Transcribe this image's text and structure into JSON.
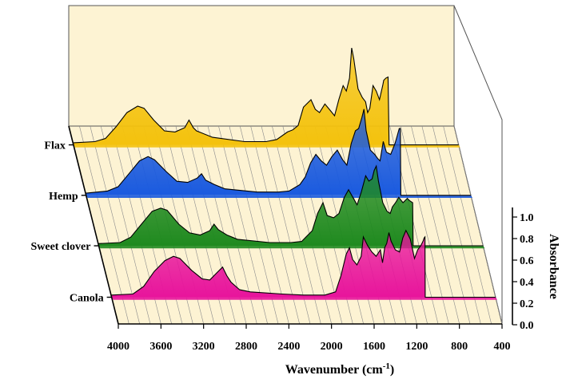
{
  "chart_data": {
    "type": "area",
    "style": "3d-waterfall",
    "xlabel": "Wavenumber (cm",
    "xlabel_sup": "-1",
    "xlabel_end": ")",
    "zlabel": "Absorbance",
    "xlim": [
      4000,
      400
    ],
    "x_ticks": [
      "4000",
      "3600",
      "3200",
      "2800",
      "2400",
      "2000",
      "1600",
      "1200",
      "800",
      "400"
    ],
    "z_ticks": [
      "0.0",
      "0.2",
      "0.4",
      "0.6",
      "0.8",
      "1.0"
    ],
    "zlim": [
      0,
      1.0
    ],
    "grid": true,
    "series": [
      {
        "name": "Flax",
        "color": "#f4c20d",
        "points": [
          [
            4000,
            0.02
          ],
          [
            3800,
            0.03
          ],
          [
            3700,
            0.06
          ],
          [
            3600,
            0.17
          ],
          [
            3500,
            0.3
          ],
          [
            3400,
            0.36
          ],
          [
            3340,
            0.34
          ],
          [
            3250,
            0.23
          ],
          [
            3150,
            0.13
          ],
          [
            3050,
            0.12
          ],
          [
            2960,
            0.16
          ],
          [
            2920,
            0.23
          ],
          [
            2880,
            0.16
          ],
          [
            2850,
            0.13
          ],
          [
            2700,
            0.07
          ],
          [
            2400,
            0.03
          ],
          [
            2200,
            0.03
          ],
          [
            2100,
            0.05
          ],
          [
            2000,
            0.12
          ],
          [
            1950,
            0.14
          ],
          [
            1900,
            0.18
          ],
          [
            1850,
            0.35
          ],
          [
            1780,
            0.42
          ],
          [
            1740,
            0.33
          ],
          [
            1700,
            0.3
          ],
          [
            1650,
            0.38
          ],
          [
            1600,
            0.32
          ],
          [
            1560,
            0.27
          ],
          [
            1520,
            0.42
          ],
          [
            1480,
            0.55
          ],
          [
            1450,
            0.5
          ],
          [
            1420,
            0.62
          ],
          [
            1400,
            0.9
          ],
          [
            1380,
            0.8
          ],
          [
            1340,
            0.52
          ],
          [
            1300,
            0.44
          ],
          [
            1270,
            0.4
          ],
          [
            1250,
            0.3
          ],
          [
            1230,
            0.34
          ],
          [
            1200,
            0.55
          ],
          [
            1170,
            0.5
          ],
          [
            1140,
            0.42
          ],
          [
            1110,
            0.55
          ],
          [
            1100,
            0.6
          ],
          [
            1080,
            0.62
          ],
          [
            1060,
            0.63
          ],
          [
            1050,
            0.0
          ],
          [
            400,
            0.0
          ]
        ]
      },
      {
        "name": "Hemp",
        "color": "#1a5adf",
        "points": [
          [
            4000,
            0.02
          ],
          [
            3800,
            0.04
          ],
          [
            3700,
            0.08
          ],
          [
            3600,
            0.2
          ],
          [
            3500,
            0.32
          ],
          [
            3420,
            0.36
          ],
          [
            3360,
            0.33
          ],
          [
            3250,
            0.22
          ],
          [
            3150,
            0.13
          ],
          [
            3050,
            0.12
          ],
          [
            2960,
            0.16
          ],
          [
            2920,
            0.2
          ],
          [
            2880,
            0.14
          ],
          [
            2800,
            0.1
          ],
          [
            2700,
            0.06
          ],
          [
            2400,
            0.03
          ],
          [
            2200,
            0.03
          ],
          [
            2100,
            0.04
          ],
          [
            2000,
            0.1
          ],
          [
            1950,
            0.17
          ],
          [
            1900,
            0.3
          ],
          [
            1850,
            0.38
          ],
          [
            1800,
            0.32
          ],
          [
            1750,
            0.28
          ],
          [
            1700,
            0.36
          ],
          [
            1650,
            0.42
          ],
          [
            1600,
            0.33
          ],
          [
            1560,
            0.28
          ],
          [
            1520,
            0.48
          ],
          [
            1480,
            0.6
          ],
          [
            1450,
            0.62
          ],
          [
            1420,
            0.72
          ],
          [
            1400,
            0.8
          ],
          [
            1380,
            0.6
          ],
          [
            1340,
            0.42
          ],
          [
            1300,
            0.38
          ],
          [
            1270,
            0.34
          ],
          [
            1250,
            0.32
          ],
          [
            1220,
            0.5
          ],
          [
            1190,
            0.4
          ],
          [
            1150,
            0.38
          ],
          [
            1110,
            0.48
          ],
          [
            1090,
            0.55
          ],
          [
            1070,
            0.62
          ],
          [
            1060,
            0.62
          ],
          [
            1055,
            0.0
          ],
          [
            400,
            0.0
          ]
        ]
      },
      {
        "name": "Sweet clover",
        "color": "#1f8a1f",
        "points": [
          [
            4000,
            0.02
          ],
          [
            3800,
            0.03
          ],
          [
            3700,
            0.08
          ],
          [
            3600,
            0.2
          ],
          [
            3500,
            0.32
          ],
          [
            3420,
            0.35
          ],
          [
            3360,
            0.33
          ],
          [
            3250,
            0.2
          ],
          [
            3150,
            0.12
          ],
          [
            3050,
            0.1
          ],
          [
            2960,
            0.14
          ],
          [
            2920,
            0.2
          ],
          [
            2880,
            0.15
          ],
          [
            2800,
            0.1
          ],
          [
            2700,
            0.06
          ],
          [
            2400,
            0.03
          ],
          [
            2200,
            0.03
          ],
          [
            2100,
            0.04
          ],
          [
            2000,
            0.14
          ],
          [
            1950,
            0.3
          ],
          [
            1900,
            0.4
          ],
          [
            1860,
            0.28
          ],
          [
            1800,
            0.26
          ],
          [
            1750,
            0.3
          ],
          [
            1700,
            0.45
          ],
          [
            1660,
            0.52
          ],
          [
            1620,
            0.45
          ],
          [
            1580,
            0.38
          ],
          [
            1540,
            0.5
          ],
          [
            1500,
            0.65
          ],
          [
            1470,
            0.6
          ],
          [
            1440,
            0.62
          ],
          [
            1420,
            0.7
          ],
          [
            1400,
            0.74
          ],
          [
            1380,
            0.6
          ],
          [
            1340,
            0.4
          ],
          [
            1300,
            0.32
          ],
          [
            1270,
            0.3
          ],
          [
            1250,
            0.36
          ],
          [
            1220,
            0.4
          ],
          [
            1190,
            0.45
          ],
          [
            1150,
            0.4
          ],
          [
            1110,
            0.44
          ],
          [
            1090,
            0.42
          ],
          [
            1060,
            0.4
          ],
          [
            1055,
            0.0
          ],
          [
            400,
            0.0
          ]
        ]
      },
      {
        "name": "Canola",
        "color": "#e8149c",
        "points": [
          [
            4000,
            0.02
          ],
          [
            3800,
            0.03
          ],
          [
            3700,
            0.1
          ],
          [
            3600,
            0.24
          ],
          [
            3500,
            0.34
          ],
          [
            3420,
            0.38
          ],
          [
            3360,
            0.36
          ],
          [
            3250,
            0.25
          ],
          [
            3150,
            0.17
          ],
          [
            3080,
            0.16
          ],
          [
            3020,
            0.22
          ],
          [
            2960,
            0.28
          ],
          [
            2920,
            0.2
          ],
          [
            2880,
            0.14
          ],
          [
            2800,
            0.07
          ],
          [
            2700,
            0.05
          ],
          [
            2400,
            0.03
          ],
          [
            2200,
            0.02
          ],
          [
            2000,
            0.02
          ],
          [
            1900,
            0.05
          ],
          [
            1850,
            0.2
          ],
          [
            1800,
            0.4
          ],
          [
            1770,
            0.46
          ],
          [
            1740,
            0.35
          ],
          [
            1700,
            0.3
          ],
          [
            1660,
            0.38
          ],
          [
            1640,
            0.56
          ],
          [
            1600,
            0.48
          ],
          [
            1560,
            0.42
          ],
          [
            1520,
            0.38
          ],
          [
            1480,
            0.44
          ],
          [
            1460,
            0.32
          ],
          [
            1440,
            0.46
          ],
          [
            1420,
            0.5
          ],
          [
            1400,
            0.6
          ],
          [
            1380,
            0.52
          ],
          [
            1340,
            0.44
          ],
          [
            1300,
            0.42
          ],
          [
            1270,
            0.55
          ],
          [
            1240,
            0.62
          ],
          [
            1200,
            0.54
          ],
          [
            1160,
            0.36
          ],
          [
            1130,
            0.44
          ],
          [
            1100,
            0.48
          ],
          [
            1080,
            0.52
          ],
          [
            1070,
            0.55
          ],
          [
            1062,
            0.56
          ],
          [
            1060,
            0.0
          ],
          [
            400,
            0.0
          ]
        ]
      }
    ]
  }
}
